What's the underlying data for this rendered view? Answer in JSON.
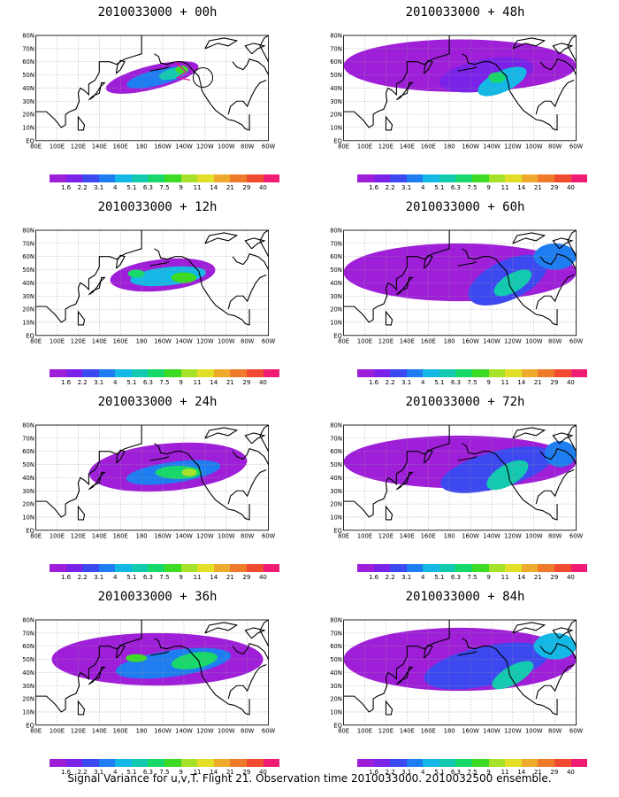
{
  "panels": [
    {
      "title": "2010033000 + 00h"
    },
    {
      "title": "2010033000 + 48h"
    },
    {
      "title": "2010033000 + 12h"
    },
    {
      "title": "2010033000 + 60h"
    },
    {
      "title": "2010033000 + 24h"
    },
    {
      "title": "2010033000 + 72h"
    },
    {
      "title": "2010033000 + 36h"
    },
    {
      "title": "2010033000 + 84h"
    }
  ],
  "lat_labels": [
    "80N",
    "70N",
    "60N",
    "50N",
    "40N",
    "30N",
    "20N",
    "10N",
    "EQ"
  ],
  "lon_labels": [
    "80E",
    "100E",
    "120E",
    "140E",
    "160E",
    "180",
    "160W",
    "140W",
    "120W",
    "100W",
    "80W",
    "60W"
  ],
  "colorbar": {
    "labels": [
      "1.6",
      "2.2",
      "3.1",
      "4",
      "5.1",
      "6.3",
      "7.5",
      "9",
      "11",
      "14",
      "21",
      "29",
      "40"
    ],
    "colors": [
      "#9f1fd9",
      "#7a22e8",
      "#3c48f0",
      "#1e7df0",
      "#14b8e6",
      "#13c9b0",
      "#19d86a",
      "#3cdc24",
      "#a6e22a",
      "#e3de28",
      "#eeaa2d",
      "#ee7a2a",
      "#f04a31",
      "#f01c74"
    ]
  },
  "colors": {
    "land": "#000000",
    "grid": "#9a9a9a"
  },
  "caption": "Signal Variance for u,v,T. Flight 21. Observation time 2010033000. 2010032500 ensemble."
}
